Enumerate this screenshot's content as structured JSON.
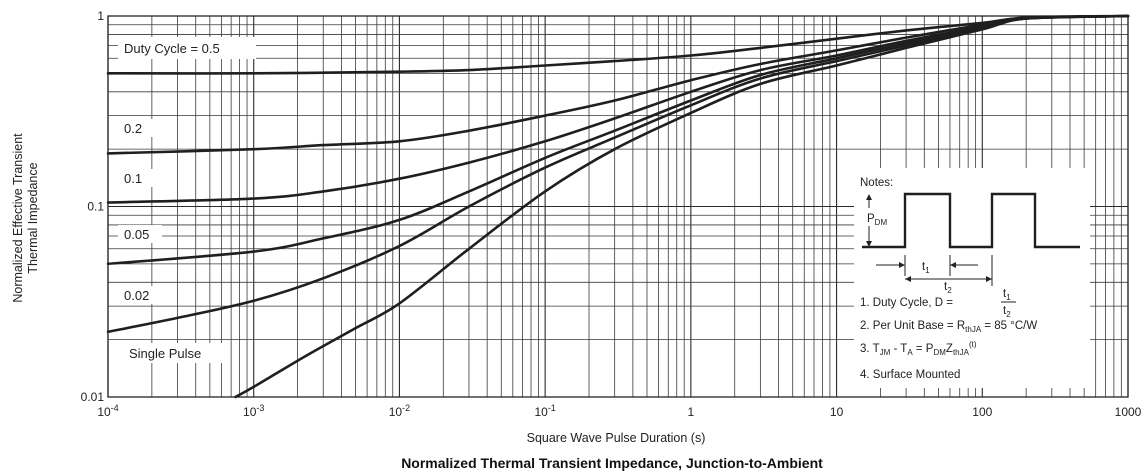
{
  "chart_data": {
    "type": "line",
    "title": "Normalized Thermal Transient Impedance, Junction-to-Ambient",
    "xlabel": "Square Wave Pulse Duration (s)",
    "ylabel_line1": "Normalized Effective Transient",
    "ylabel_line2": "Thermal Impedance",
    "xscale": "log",
    "yscale": "log",
    "xlim": [
      0.0001,
      1000
    ],
    "ylim": [
      0.01,
      1
    ],
    "grid": true,
    "x_ticks": [
      {
        "value": 0.0001,
        "base": "10",
        "exp": "-4"
      },
      {
        "value": 0.001,
        "base": "10",
        "exp": "-3"
      },
      {
        "value": 0.01,
        "base": "10",
        "exp": "-2"
      },
      {
        "value": 0.1,
        "base": "10",
        "exp": "-1"
      },
      {
        "value": 1,
        "base": "1",
        "exp": ""
      },
      {
        "value": 10,
        "base": "10",
        "exp": ""
      },
      {
        "value": 100,
        "base": "100",
        "exp": ""
      },
      {
        "value": 1000,
        "base": "1000",
        "exp": ""
      }
    ],
    "y_ticks": [
      {
        "value": 1,
        "label": "1"
      },
      {
        "value": 0.1,
        "label": "0.1"
      },
      {
        "value": 0.01,
        "label": "0.01"
      }
    ],
    "series": [
      {
        "name": "Duty Cycle = 0.5",
        "x": [
          0.0001,
          0.001,
          0.01,
          0.03,
          0.1,
          0.3,
          1,
          3,
          10,
          30,
          100,
          200,
          1000
        ],
        "y": [
          0.5,
          0.5,
          0.51,
          0.52,
          0.55,
          0.58,
          0.62,
          0.68,
          0.76,
          0.84,
          0.92,
          0.98,
          1.0
        ]
      },
      {
        "name": "0.2",
        "x": [
          0.0001,
          0.001,
          0.003,
          0.01,
          0.03,
          0.1,
          0.3,
          1,
          3,
          10,
          30,
          100,
          200,
          1000
        ],
        "y": [
          0.19,
          0.2,
          0.21,
          0.22,
          0.25,
          0.3,
          0.36,
          0.46,
          0.56,
          0.66,
          0.77,
          0.9,
          0.98,
          1.0
        ]
      },
      {
        "name": "0.1",
        "x": [
          0.0001,
          0.001,
          0.003,
          0.01,
          0.03,
          0.1,
          0.3,
          1,
          3,
          10,
          30,
          100,
          200,
          1000
        ],
        "y": [
          0.105,
          0.11,
          0.12,
          0.14,
          0.17,
          0.22,
          0.29,
          0.4,
          0.52,
          0.62,
          0.74,
          0.88,
          0.97,
          1.0
        ]
      },
      {
        "name": "0.05",
        "x": [
          0.0001,
          0.001,
          0.003,
          0.01,
          0.03,
          0.1,
          0.3,
          1,
          3,
          10,
          30,
          100,
          200,
          1000
        ],
        "y": [
          0.05,
          0.058,
          0.068,
          0.085,
          0.12,
          0.18,
          0.25,
          0.36,
          0.49,
          0.6,
          0.72,
          0.87,
          0.97,
          1.0
        ]
      },
      {
        "name": "0.02",
        "x": [
          0.0001,
          0.0003,
          0.001,
          0.003,
          0.01,
          0.03,
          0.1,
          0.3,
          1,
          3,
          10,
          30,
          100,
          200,
          1000
        ],
        "y": [
          0.022,
          0.026,
          0.032,
          0.042,
          0.062,
          0.1,
          0.16,
          0.23,
          0.34,
          0.47,
          0.58,
          0.7,
          0.86,
          0.97,
          1.0
        ]
      },
      {
        "name": "Single Pulse",
        "x": [
          0.00075,
          0.001,
          0.002,
          0.003,
          0.005,
          0.01,
          0.03,
          0.1,
          0.3,
          1,
          3,
          10,
          30,
          100,
          200,
          1000
        ],
        "y": [
          0.01,
          0.0113,
          0.0155,
          0.0185,
          0.023,
          0.031,
          0.06,
          0.12,
          0.2,
          0.31,
          0.44,
          0.55,
          0.68,
          0.85,
          0.97,
          1.0
        ]
      }
    ],
    "annotations": {
      "notes_title": "Notes:",
      "pdm": "P",
      "pdm_sub": "DM",
      "t1": "t",
      "t1_sub": "1",
      "t2": "t",
      "t2_sub": "2",
      "note1_prefix": "1. Duty Cycle, D = ",
      "note1_num": "t",
      "note1_num_sub": "1",
      "note1_den": "t",
      "note1_den_sub": "2",
      "note2_prefix": "2. Per Unit Base = R",
      "note2_sub": "thJA",
      "note2_suffix": " = 85 °C/W",
      "note3_a": "3. T",
      "note3_a_sub": "JM",
      "note3_b": " - T",
      "note3_b_sub": "A",
      "note3_c": " = P",
      "note3_c_sub": "DM",
      "note3_d": "Z",
      "note3_d_sub": "thJA",
      "note3_e": "(t)",
      "note4": "4. Surface Mounted"
    }
  }
}
